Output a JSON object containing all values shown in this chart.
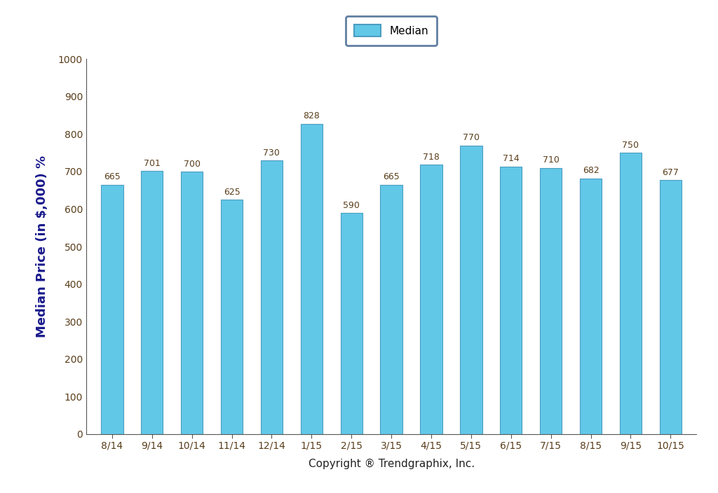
{
  "categories": [
    "8/14",
    "9/14",
    "10/14",
    "11/14",
    "12/14",
    "1/15",
    "2/15",
    "3/15",
    "4/15",
    "5/15",
    "6/15",
    "7/15",
    "8/15",
    "9/15",
    "10/15"
  ],
  "values": [
    665,
    701,
    700,
    625,
    730,
    828,
    590,
    665,
    718,
    770,
    714,
    710,
    682,
    750,
    677
  ],
  "bar_color": "#62C8E8",
  "bar_edge_color": "#4A9DBF",
  "ylabel": "Median Price (in $,000) %",
  "xlabel": "Copyright ® Trendgraphix, Inc.",
  "ylim": [
    0,
    1000
  ],
  "yticks": [
    0,
    100,
    200,
    300,
    400,
    500,
    600,
    700,
    800,
    900,
    1000
  ],
  "legend_label": "Median",
  "legend_edge_color": "#3A5F8A",
  "background_color": "#ffffff",
  "bar_width": 0.55,
  "annotation_fontsize": 9,
  "annotation_color": "#5A3E1B",
  "ylabel_fontsize": 13,
  "xlabel_fontsize": 11,
  "tick_fontsize": 10,
  "legend_fontsize": 11,
  "tick_label_color": "#5A3E1B",
  "axis_color": "#555555",
  "ylabel_color": "#1a1a8c"
}
